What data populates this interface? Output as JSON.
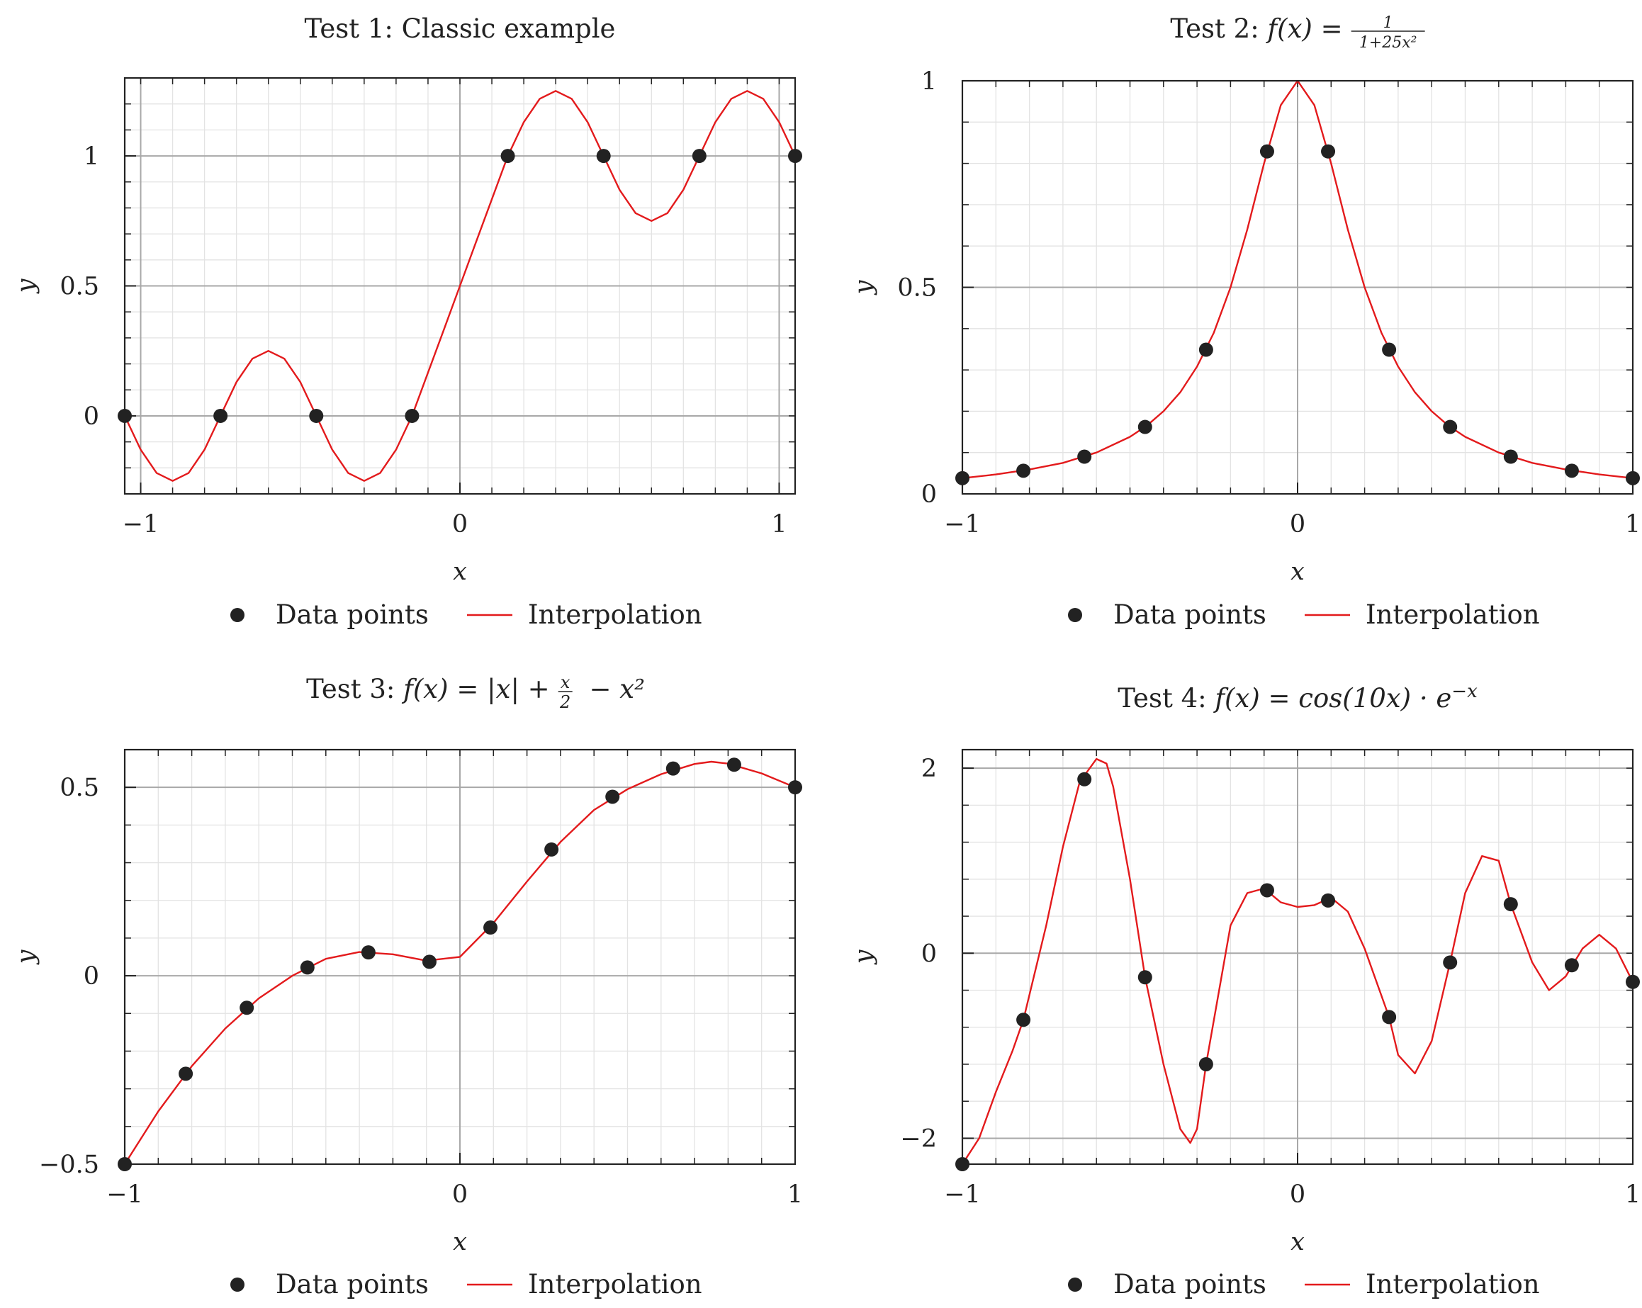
{
  "figure": {
    "legend": {
      "points_label": "Data points",
      "line_label": "Interpolation"
    },
    "colors": {
      "curve": "#e31a1c",
      "points": "#222222",
      "major_grid": "#a8a8a8",
      "minor_grid": "#e3e3e3",
      "frame": "#222222"
    }
  },
  "chart_data": [
    {
      "type": "line",
      "title": "Test 1: Classic example",
      "xlabel": "x",
      "ylabel": "y",
      "xlim": [
        -1.05,
        1.05
      ],
      "ylim": [
        -0.3,
        1.3
      ],
      "xticks": [
        -1,
        0,
        1
      ],
      "xtick_labels": [
        "−1",
        "0",
        "1"
      ],
      "yticks": [
        0,
        0.5,
        1
      ],
      "ytick_labels": [
        "0",
        "0.5",
        "1"
      ],
      "major_grid_x": [
        -1,
        0,
        1
      ],
      "major_grid_y": [
        0,
        0.5,
        1
      ],
      "grid": true,
      "legend_position": "below",
      "series": [
        {
          "name": "Data points",
          "kind": "scatter",
          "x": [
            -1.05,
            -0.75,
            -0.45,
            -0.15,
            0.15,
            0.45,
            0.75,
            1.05
          ],
          "y": [
            0,
            0,
            0,
            0,
            1,
            1,
            1,
            1
          ]
        },
        {
          "name": "Interpolation",
          "kind": "line",
          "x": [
            -1.05,
            -1.0,
            -0.95,
            -0.9,
            -0.85,
            -0.8,
            -0.75,
            -0.7,
            -0.65,
            -0.6,
            -0.55,
            -0.5,
            -0.45,
            -0.4,
            -0.35,
            -0.3,
            -0.25,
            -0.2,
            -0.15,
            -0.1,
            -0.05,
            0,
            0.05,
            0.1,
            0.15,
            0.2,
            0.25,
            0.3,
            0.35,
            0.4,
            0.45,
            0.5,
            0.55,
            0.6,
            0.65,
            0.7,
            0.75,
            0.8,
            0.85,
            0.9,
            0.95,
            1.0,
            1.05
          ],
          "y": [
            0,
            -0.13,
            -0.22,
            -0.25,
            -0.22,
            -0.13,
            0,
            0.13,
            0.22,
            0.25,
            0.22,
            0.13,
            0,
            -0.13,
            -0.22,
            -0.25,
            -0.22,
            -0.13,
            0,
            0.167,
            0.333,
            0.5,
            0.667,
            0.833,
            1,
            1.13,
            1.22,
            1.25,
            1.22,
            1.13,
            1,
            0.87,
            0.78,
            0.75,
            0.78,
            0.87,
            1,
            1.13,
            1.22,
            1.25,
            1.22,
            1.13,
            1
          ]
        }
      ]
    },
    {
      "type": "line",
      "title": "Test 2:",
      "title_math": {
        "lhs": "f(x) =",
        "numerator": "1",
        "denominator": "1+25x²"
      },
      "xlabel": "x",
      "ylabel": "y",
      "xlim": [
        -1,
        1
      ],
      "ylim": [
        0,
        1
      ],
      "xticks": [
        -1,
        0,
        1
      ],
      "xtick_labels": [
        "−1",
        "0",
        "1"
      ],
      "yticks": [
        0,
        0.5,
        1
      ],
      "ytick_labels": [
        "0",
        "0.5",
        "1"
      ],
      "major_grid_x": [
        0
      ],
      "major_grid_y": [
        0.5
      ],
      "grid": true,
      "legend_position": "below",
      "series": [
        {
          "name": "Data points",
          "kind": "scatter",
          "x": [
            -1,
            -0.818,
            -0.636,
            -0.455,
            -0.273,
            -0.091,
            0.091,
            0.273,
            0.455,
            0.636,
            0.818,
            1
          ],
          "y": [
            0.038,
            0.056,
            0.09,
            0.162,
            0.349,
            0.829,
            0.829,
            0.349,
            0.162,
            0.09,
            0.056,
            0.038
          ]
        },
        {
          "name": "Interpolation",
          "kind": "line",
          "x": [
            -1,
            -0.9,
            -0.8,
            -0.7,
            -0.6,
            -0.5,
            -0.45,
            -0.4,
            -0.35,
            -0.3,
            -0.25,
            -0.2,
            -0.15,
            -0.1,
            -0.05,
            0,
            0.05,
            0.1,
            0.15,
            0.2,
            0.25,
            0.3,
            0.35,
            0.4,
            0.45,
            0.5,
            0.6,
            0.7,
            0.8,
            0.9,
            1
          ],
          "y": [
            0.038,
            0.047,
            0.059,
            0.075,
            0.1,
            0.138,
            0.165,
            0.2,
            0.246,
            0.308,
            0.39,
            0.5,
            0.64,
            0.8,
            0.941,
            1,
            0.941,
            0.8,
            0.64,
            0.5,
            0.39,
            0.308,
            0.246,
            0.2,
            0.165,
            0.138,
            0.1,
            0.075,
            0.059,
            0.047,
            0.038
          ]
        }
      ]
    },
    {
      "type": "line",
      "title": "Test 3:",
      "title_math": {
        "lhs": "f(x) = |x| +",
        "numerator": "x",
        "denominator": "2",
        "rhs": "− x²"
      },
      "xlabel": "x",
      "ylabel": "y",
      "xlim": [
        -1,
        1
      ],
      "ylim": [
        -0.5,
        0.6
      ],
      "xticks": [
        -1,
        0,
        1
      ],
      "xtick_labels": [
        "−1",
        "0",
        "1"
      ],
      "yticks": [
        -0.5,
        0,
        0.5
      ],
      "ytick_labels": [
        "−0.5",
        "0",
        "0.5"
      ],
      "major_grid_x": [
        0
      ],
      "major_grid_y": [
        0,
        0.5
      ],
      "grid": true,
      "legend_position": "below",
      "series": [
        {
          "name": "Data points",
          "kind": "scatter",
          "x": [
            -1,
            -0.818,
            -0.636,
            -0.455,
            -0.273,
            -0.091,
            0.091,
            0.273,
            0.455,
            0.636,
            0.818,
            1
          ],
          "y": [
            -0.5,
            -0.26,
            -0.085,
            0.022,
            0.062,
            0.037,
            0.128,
            0.335,
            0.475,
            0.55,
            0.56,
            0.5
          ]
        },
        {
          "name": "Interpolation",
          "kind": "line",
          "x": [
            -1,
            -0.9,
            -0.8,
            -0.7,
            -0.6,
            -0.5,
            -0.4,
            -0.3,
            -0.2,
            -0.1,
            0,
            0.1,
            0.2,
            0.3,
            0.4,
            0.5,
            0.6,
            0.7,
            0.75,
            0.8,
            0.9,
            1
          ],
          "y": [
            -0.5,
            -0.36,
            -0.24,
            -0.14,
            -0.06,
            0.0,
            0.045,
            0.063,
            0.057,
            0.04,
            0.05,
            0.14,
            0.25,
            0.355,
            0.44,
            0.495,
            0.535,
            0.562,
            0.568,
            0.563,
            0.537,
            0.5
          ]
        }
      ]
    },
    {
      "type": "line",
      "title": "Test 4:",
      "title_math": {
        "lhs": "f(x) = cos(10x) · e",
        "sup": "−x"
      },
      "xlabel": "x",
      "ylabel": "y",
      "xlim": [
        -1,
        1
      ],
      "ylim": [
        -2.28,
        2.2
      ],
      "xticks": [
        -1,
        0,
        1
      ],
      "xtick_labels": [
        "−1",
        "0",
        "1"
      ],
      "yticks": [
        -2,
        0,
        2
      ],
      "ytick_labels": [
        "−2",
        "0",
        "2"
      ],
      "major_grid_x": [
        0
      ],
      "major_grid_y": [
        -2,
        0,
        2
      ],
      "grid": true,
      "legend_position": "below",
      "series": [
        {
          "name": "Data points",
          "kind": "scatter",
          "x": [
            -1,
            -0.818,
            -0.636,
            -0.455,
            -0.273,
            -0.091,
            0.091,
            0.273,
            0.455,
            0.636,
            0.818,
            1
          ],
          "y": [
            -2.28,
            -0.72,
            1.88,
            -0.26,
            -1.2,
            0.68,
            0.57,
            -0.69,
            -0.1,
            0.53,
            -0.13,
            -0.31
          ]
        },
        {
          "name": "Interpolation",
          "kind": "line",
          "x": [
            -1,
            -0.95,
            -0.9,
            -0.85,
            -0.818,
            -0.75,
            -0.7,
            -0.65,
            -0.6,
            -0.57,
            -0.55,
            -0.5,
            -0.455,
            -0.4,
            -0.35,
            -0.32,
            -0.3,
            -0.273,
            -0.2,
            -0.15,
            -0.1,
            -0.05,
            0,
            0.05,
            0.1,
            0.15,
            0.2,
            0.273,
            0.3,
            0.35,
            0.4,
            0.455,
            0.5,
            0.55,
            0.6,
            0.636,
            0.7,
            0.75,
            0.8,
            0.85,
            0.9,
            0.95,
            1
          ],
          "y": [
            -2.28,
            -2.0,
            -1.5,
            -1.05,
            -0.72,
            0.3,
            1.15,
            1.85,
            2.1,
            2.05,
            1.8,
            0.8,
            -0.26,
            -1.2,
            -1.9,
            -2.05,
            -1.9,
            -1.2,
            0.3,
            0.65,
            0.7,
            0.55,
            0.5,
            0.52,
            0.6,
            0.45,
            0.05,
            -0.69,
            -1.1,
            -1.3,
            -0.95,
            -0.1,
            0.65,
            1.05,
            1.0,
            0.53,
            -0.1,
            -0.4,
            -0.25,
            0.05,
            0.2,
            0.05,
            -0.31
          ]
        }
      ]
    }
  ]
}
